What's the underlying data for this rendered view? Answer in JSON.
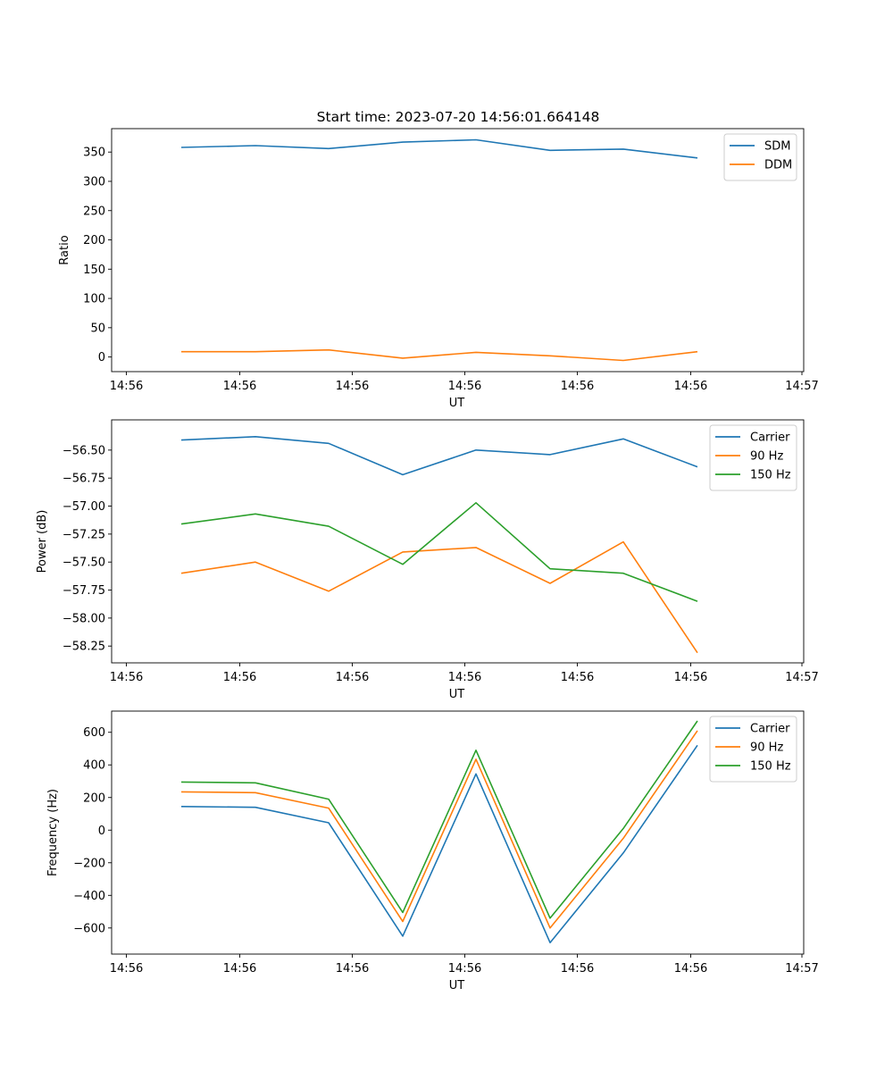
{
  "title": "Start time: 2023-07-20 14:56:01.664148",
  "chart_data": [
    {
      "type": "line",
      "xlabel": "UT",
      "ylabel": "Ratio",
      "x_tick_labels": [
        "14:56",
        "14:56",
        "14:56",
        "14:56",
        "14:56",
        "14:56",
        "14:56"
      ],
      "x_last_tick_label": "14:57",
      "ylim": [
        -25,
        390
      ],
      "y_ticks": [
        0,
        50,
        100,
        150,
        200,
        250,
        300,
        350
      ],
      "y_tick_labels": [
        "0",
        "50",
        "100",
        "150",
        "200",
        "250",
        "300",
        "350"
      ],
      "legend": "top-right",
      "series": [
        {
          "name": "SDM",
          "color": "#1f77b4",
          "values": [
            358,
            361,
            356,
            367,
            371,
            353,
            355,
            340
          ]
        },
        {
          "name": "DDM",
          "color": "#ff7f0e",
          "values": [
            9,
            9,
            12,
            -2,
            8,
            2,
            -6,
            9
          ]
        }
      ]
    },
    {
      "type": "line",
      "xlabel": "UT",
      "ylabel": "Power (dB)",
      "x_tick_labels": [
        "14:56",
        "14:56",
        "14:56",
        "14:56",
        "14:56",
        "14:56",
        "14:56"
      ],
      "x_last_tick_label": "14:57",
      "ylim": [
        -58.4,
        -56.23
      ],
      "y_ticks": [
        -58.25,
        -58.0,
        -57.75,
        -57.5,
        -57.25,
        -57.0,
        -56.75,
        -56.5
      ],
      "y_tick_labels": [
        "−58.25",
        "−58.00",
        "−57.75",
        "−57.50",
        "−57.25",
        "−57.00",
        "−56.75",
        "−56.50"
      ],
      "legend": "top-right",
      "series": [
        {
          "name": "Carrier",
          "color": "#1f77b4",
          "values": [
            -56.41,
            -56.38,
            -56.44,
            -56.72,
            -56.5,
            -56.54,
            -56.4,
            -56.65
          ]
        },
        {
          "name": "90 Hz",
          "color": "#ff7f0e",
          "values": [
            -57.6,
            -57.5,
            -57.76,
            -57.41,
            -57.37,
            -57.69,
            -57.32,
            -58.31
          ]
        },
        {
          "name": "150 Hz",
          "color": "#2ca02c",
          "values": [
            -57.16,
            -57.07,
            -57.18,
            -57.52,
            -56.97,
            -57.56,
            -57.6,
            -57.85
          ]
        }
      ]
    },
    {
      "type": "line",
      "xlabel": "UT",
      "ylabel": "Frequency (Hz)",
      "x_tick_labels": [
        "14:56",
        "14:56",
        "14:56",
        "14:56",
        "14:56",
        "14:56",
        "14:56"
      ],
      "x_last_tick_label": "14:57",
      "ylim": [
        -760,
        730
      ],
      "y_ticks": [
        -600,
        -400,
        -200,
        0,
        200,
        400,
        600
      ],
      "y_tick_labels": [
        "−600",
        "−400",
        "−200",
        "0",
        "200",
        "400",
        "600"
      ],
      "legend": "top-right",
      "series": [
        {
          "name": "Carrier",
          "color": "#1f77b4",
          "values": [
            145,
            140,
            45,
            -650,
            345,
            -690,
            -140,
            520
          ]
        },
        {
          "name": "90 Hz",
          "color": "#ff7f0e",
          "values": [
            235,
            230,
            135,
            -560,
            435,
            -600,
            -50,
            610
          ]
        },
        {
          "name": "150 Hz",
          "color": "#2ca02c",
          "values": [
            295,
            290,
            190,
            -505,
            490,
            -540,
            10,
            670
          ]
        }
      ]
    }
  ]
}
